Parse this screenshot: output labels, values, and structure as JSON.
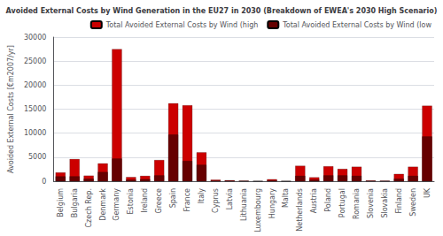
{
  "chart_data": {
    "type": "bar",
    "title": "Avoided External Costs by Wind Generation in the EU27 in 2030 (Breakdown of EWEA's 2030 High Scenario)",
    "ylabel": "Avoided External Costs [€m2007/yr]",
    "categories": [
      "Belgium",
      "Bulgaria",
      "Czech Rep.",
      "Denmark",
      "Germany",
      "Estonia",
      "Ireland",
      "Greece",
      "Spain",
      "France",
      "Italy",
      "Cyprus",
      "Latvia",
      "Lithuania",
      "Luxembourg",
      "Hungary",
      "Malta",
      "Netherlands",
      "Austria",
      "Poland",
      "Portugal",
      "Romania",
      "Slovenia",
      "Slovakia",
      "Finland",
      "Sweden",
      "UK"
    ],
    "series": [
      {
        "name": "Total Avoided External Costs by Wind (high",
        "color": "#cc0000",
        "values": [
          1800,
          4600,
          1150,
          3700,
          27500,
          850,
          1100,
          4400,
          16200,
          15800,
          6000,
          300,
          200,
          100,
          50,
          400,
          50,
          3200,
          800,
          3100,
          2550,
          3000,
          150,
          100,
          1500,
          3000,
          15700
        ]
      },
      {
        "name": "Total Avoided External Costs by Wind (low",
        "color": "#660000",
        "values": [
          1000,
          1000,
          500,
          1900,
          4700,
          300,
          400,
          1200,
          9700,
          4200,
          3400,
          100,
          100,
          50,
          20,
          150,
          20,
          1100,
          300,
          1200,
          1200,
          1100,
          60,
          30,
          500,
          1100,
          9300
        ]
      }
    ],
    "ylim": [
      0,
      30000
    ],
    "yticks": [
      0,
      5000,
      10000,
      15000,
      20000,
      25000,
      30000
    ],
    "grid": true,
    "legend": "upper right"
  }
}
